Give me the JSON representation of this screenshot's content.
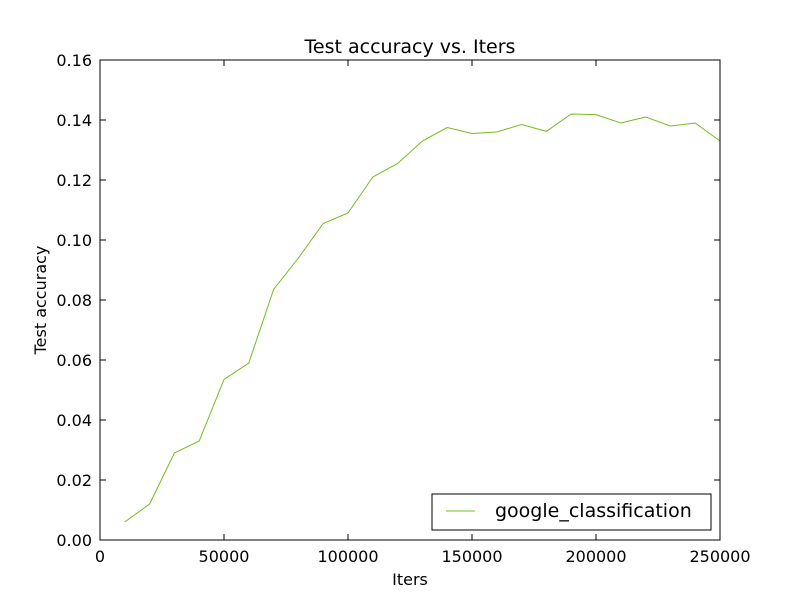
{
  "chart_data": {
    "type": "line",
    "title": "Test accuracy  vs. Iters",
    "xlabel": "Iters",
    "ylabel": "Test accuracy",
    "xlim": [
      0,
      250000
    ],
    "ylim": [
      0,
      0.16
    ],
    "xticks": [
      "0",
      "50000",
      "100000",
      "150000",
      "200000",
      "250000"
    ],
    "yticks": [
      "0.00",
      "0.02",
      "0.04",
      "0.06",
      "0.08",
      "0.10",
      "0.12",
      "0.14",
      "0.16"
    ],
    "grid": false,
    "legend_position": "bottom-right",
    "series": [
      {
        "name": "google_classification",
        "color": "#77bb22",
        "x": [
          10000,
          20000,
          30000,
          40000,
          50000,
          60000,
          70000,
          80000,
          90000,
          100000,
          110000,
          120000,
          130000,
          140000,
          150000,
          160000,
          170000,
          180000,
          190000,
          200000,
          210000,
          220000,
          230000,
          240000,
          250000
        ],
        "y": [
          0.006,
          0.012,
          0.029,
          0.033,
          0.0535,
          0.059,
          0.0835,
          0.094,
          0.1055,
          0.109,
          0.121,
          0.1255,
          0.133,
          0.1375,
          0.1355,
          0.136,
          0.1385,
          0.1362,
          0.142,
          0.1418,
          0.139,
          0.141,
          0.138,
          0.139,
          0.133
        ]
      }
    ]
  }
}
